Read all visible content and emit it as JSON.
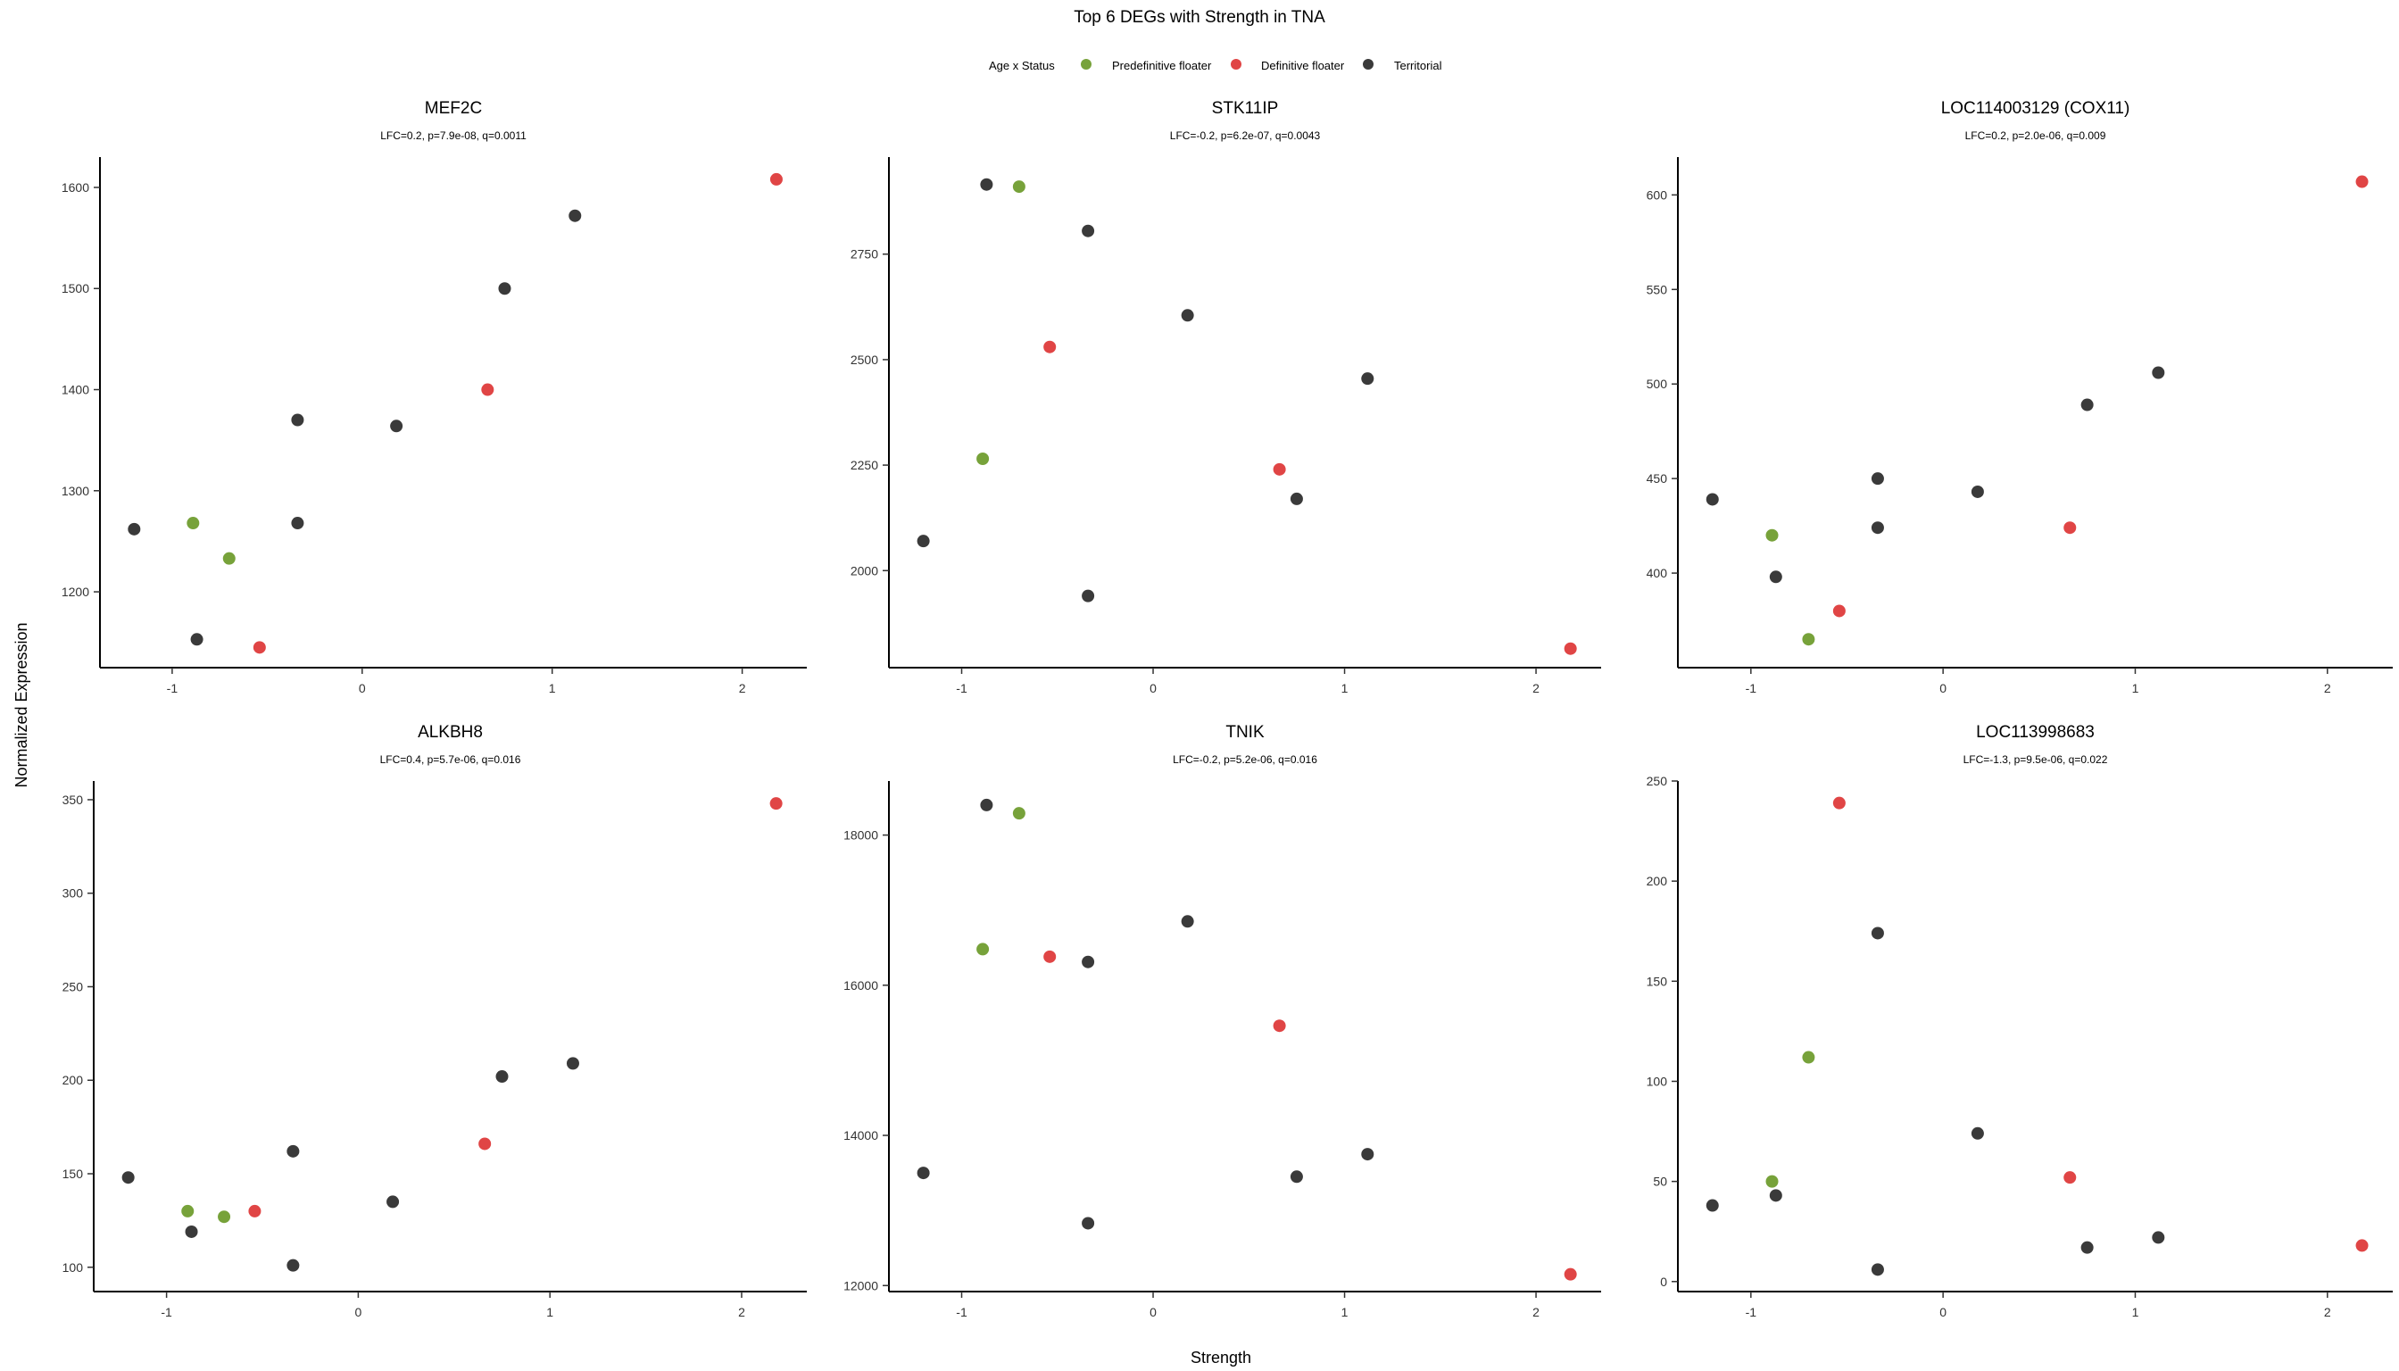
{
  "title": "Top 6 DEGs with Strength in TNA",
  "xlabel": "Strength",
  "ylabel": "Normalized Expression",
  "legend": {
    "title": "Age x Status",
    "placement": "top-center",
    "entries": [
      {
        "name": "Predefinitive floater",
        "color": "#77a23a"
      },
      {
        "name": "Definitive floater",
        "color": "#e04545"
      },
      {
        "name": "Territorial",
        "color": "#3a3a3a"
      }
    ]
  },
  "chart_data": [
    {
      "type": "scatter",
      "title": "MEF2C",
      "subtitle": "LFC=0.2, p=7.9e-08, q=0.0011",
      "xlim": [
        -1.38,
        2.34
      ],
      "ylim": [
        1125,
        1630
      ],
      "xticks": [
        "-1",
        "0",
        "1",
        "2"
      ],
      "xtick_values": [
        -1,
        0,
        1,
        2
      ],
      "yticks": [
        "1200",
        "1300",
        "1400",
        "1500",
        "1600"
      ],
      "ytick_values": [
        1200,
        1300,
        1400,
        1500,
        1600
      ],
      "series": [
        {
          "name": "Predefinitive floater",
          "points": [
            [
              -0.89,
              1268
            ],
            [
              -0.7,
              1233
            ]
          ]
        },
        {
          "name": "Definitive floater",
          "points": [
            [
              -0.54,
              1145
            ],
            [
              0.66,
              1400
            ],
            [
              2.18,
              1608
            ]
          ]
        },
        {
          "name": "Territorial",
          "points": [
            [
              -1.2,
              1262
            ],
            [
              -0.87,
              1153
            ],
            [
              -0.34,
              1370
            ],
            [
              -0.34,
              1268
            ],
            [
              0.18,
              1364
            ],
            [
              0.75,
              1500
            ],
            [
              1.12,
              1572
            ]
          ]
        }
      ]
    },
    {
      "type": "scatter",
      "title": "STK11IP",
      "subtitle": "LFC=-0.2, p=6.2e-07, q=0.0043",
      "xlim": [
        -1.38,
        2.34
      ],
      "ylim": [
        1770,
        2980
      ],
      "xticks": [
        "-1",
        "0",
        "1",
        "2"
      ],
      "xtick_values": [
        -1,
        0,
        1,
        2
      ],
      "yticks": [
        "2000",
        "2250",
        "2500",
        "2750"
      ],
      "ytick_values": [
        2000,
        2250,
        2500,
        2750
      ],
      "series": [
        {
          "name": "Predefinitive floater",
          "points": [
            [
              -0.89,
              2265
            ],
            [
              -0.7,
              2910
            ]
          ]
        },
        {
          "name": "Definitive floater",
          "points": [
            [
              -0.54,
              2530
            ],
            [
              0.66,
              2240
            ],
            [
              2.18,
              1815
            ]
          ]
        },
        {
          "name": "Territorial",
          "points": [
            [
              -1.2,
              2070
            ],
            [
              -0.87,
              2915
            ],
            [
              -0.34,
              2805
            ],
            [
              -0.34,
              1940
            ],
            [
              0.18,
              2605
            ],
            [
              0.75,
              2170
            ],
            [
              1.12,
              2455
            ]
          ]
        }
      ]
    },
    {
      "type": "scatter",
      "title": "LOC114003129 (COX11)",
      "subtitle": "LFC=0.2, p=2.0e-06, q=0.009",
      "xlim": [
        -1.38,
        2.34
      ],
      "ylim": [
        350,
        620
      ],
      "xticks": [
        "-1",
        "0",
        "1",
        "2"
      ],
      "xtick_values": [
        -1,
        0,
        1,
        2
      ],
      "yticks": [
        "400",
        "450",
        "500",
        "550",
        "600"
      ],
      "ytick_values": [
        400,
        450,
        500,
        550,
        600
      ],
      "series": [
        {
          "name": "Predefinitive floater",
          "points": [
            [
              -0.89,
              420
            ],
            [
              -0.7,
              365
            ]
          ]
        },
        {
          "name": "Definitive floater",
          "points": [
            [
              -0.54,
              380
            ],
            [
              0.66,
              424
            ],
            [
              2.18,
              607
            ]
          ]
        },
        {
          "name": "Territorial",
          "points": [
            [
              -1.2,
              439
            ],
            [
              -0.87,
              398
            ],
            [
              -0.34,
              450
            ],
            [
              -0.34,
              424
            ],
            [
              0.18,
              443
            ],
            [
              0.75,
              489
            ],
            [
              1.12,
              506
            ]
          ]
        }
      ]
    },
    {
      "type": "scatter",
      "title": "ALKBH8",
      "subtitle": "LFC=0.4, p=5.7e-06, q=0.016",
      "xlim": [
        -1.38,
        2.34
      ],
      "ylim": [
        87,
        360
      ],
      "xticks": [
        "-1",
        "0",
        "1",
        "2"
      ],
      "xtick_values": [
        -1,
        0,
        1,
        2
      ],
      "yticks": [
        "100",
        "150",
        "200",
        "250",
        "300",
        "350"
      ],
      "ytick_values": [
        100,
        150,
        200,
        250,
        300,
        350
      ],
      "series": [
        {
          "name": "Predefinitive floater",
          "points": [
            [
              -0.89,
              130
            ],
            [
              -0.7,
              127
            ]
          ]
        },
        {
          "name": "Definitive floater",
          "points": [
            [
              -0.54,
              130
            ],
            [
              0.66,
              166
            ],
            [
              2.18,
              348
            ]
          ]
        },
        {
          "name": "Territorial",
          "points": [
            [
              -1.2,
              148
            ],
            [
              -0.87,
              119
            ],
            [
              -0.34,
              162
            ],
            [
              -0.34,
              101
            ],
            [
              0.18,
              135
            ],
            [
              0.75,
              202
            ],
            [
              1.12,
              209
            ]
          ]
        }
      ]
    },
    {
      "type": "scatter",
      "title": "TNIK",
      "subtitle": "LFC=-0.2, p=5.2e-06, q=0.016",
      "xlim": [
        -1.38,
        2.34
      ],
      "ylim": [
        11920,
        18720
      ],
      "xticks": [
        "-1",
        "0",
        "1",
        "2"
      ],
      "xtick_values": [
        -1,
        0,
        1,
        2
      ],
      "yticks": [
        "12000",
        "14000",
        "16000",
        "18000"
      ],
      "ytick_values": [
        12000,
        14000,
        16000,
        18000
      ],
      "series": [
        {
          "name": "Predefinitive floater",
          "points": [
            [
              -0.89,
              16480
            ],
            [
              -0.7,
              18290
            ]
          ]
        },
        {
          "name": "Definitive floater",
          "points": [
            [
              -0.54,
              16380
            ],
            [
              0.66,
              15460
            ],
            [
              2.18,
              12150
            ]
          ]
        },
        {
          "name": "Territorial",
          "points": [
            [
              -1.2,
              13500
            ],
            [
              -0.87,
              18400
            ],
            [
              -0.34,
              16310
            ],
            [
              -0.34,
              12830
            ],
            [
              0.18,
              16850
            ],
            [
              0.75,
              13450
            ],
            [
              1.12,
              13750
            ]
          ]
        }
      ]
    },
    {
      "type": "scatter",
      "title": "LOC113998683",
      "subtitle": "LFC=-1.3, p=9.5e-06, q=0.022",
      "xlim": [
        -1.38,
        2.34
      ],
      "ylim": [
        -5,
        250
      ],
      "xticks": [
        "-1",
        "0",
        "1",
        "2"
      ],
      "xtick_values": [
        -1,
        0,
        1,
        2
      ],
      "yticks": [
        "0",
        "50",
        "100",
        "150",
        "200",
        "250"
      ],
      "ytick_values": [
        0,
        50,
        100,
        150,
        200,
        250
      ],
      "series": [
        {
          "name": "Predefinitive floater",
          "points": [
            [
              -0.89,
              50
            ],
            [
              -0.7,
              112
            ]
          ]
        },
        {
          "name": "Definitive floater",
          "points": [
            [
              -0.54,
              239
            ],
            [
              0.66,
              52
            ],
            [
              2.18,
              18
            ]
          ]
        },
        {
          "name": "Territorial",
          "points": [
            [
              -1.2,
              38
            ],
            [
              -0.87,
              43
            ],
            [
              -0.34,
              174
            ],
            [
              -0.34,
              6
            ],
            [
              0.18,
              74
            ],
            [
              0.75,
              17
            ],
            [
              1.12,
              22
            ]
          ]
        }
      ]
    }
  ]
}
